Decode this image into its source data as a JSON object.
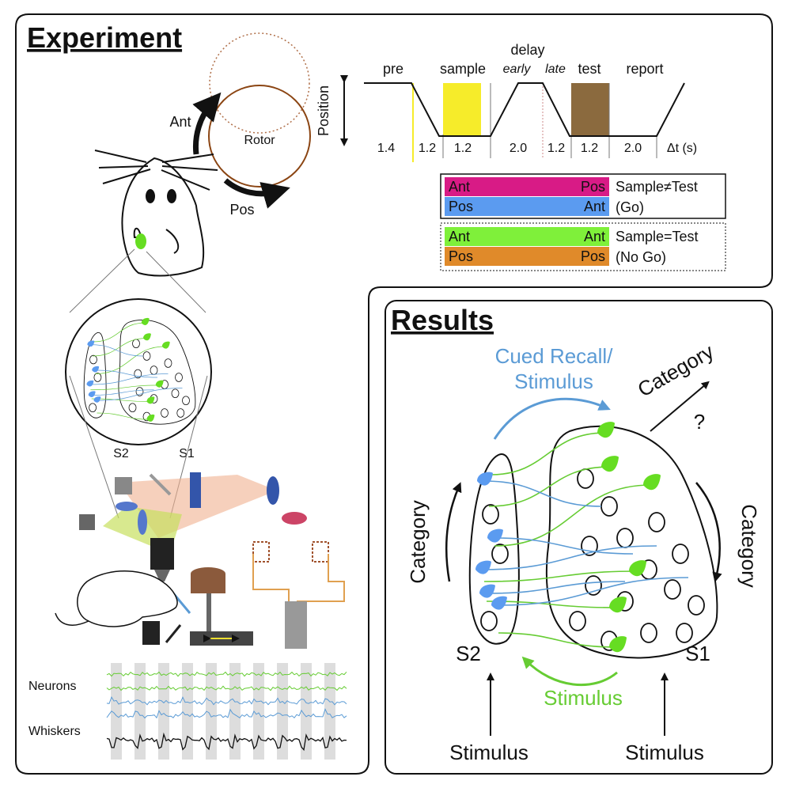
{
  "experiment": {
    "title": "Experiment",
    "rotor": {
      "ant": "Ant",
      "label": "Rotor",
      "pos": "Pos"
    },
    "timeline": {
      "axis_label": "Position",
      "phases": [
        "pre",
        "sample",
        "test",
        "report"
      ],
      "delay": {
        "label": "delay",
        "early": "early",
        "late": "late"
      },
      "durations": [
        "1.4",
        "1.2",
        "1.2",
        "2.0",
        "1.2",
        "1.2",
        "2.0"
      ],
      "unit": "Δt (s)"
    },
    "legend": {
      "rows": [
        {
          "left": "Ant",
          "right": "Pos"
        },
        {
          "left": "Pos",
          "right": "Ant"
        },
        {
          "left": "Ant",
          "right": "Ant"
        },
        {
          "left": "Pos",
          "right": "Pos"
        }
      ],
      "groups": [
        {
          "label": "Sample≠Test",
          "note": "(Go)"
        },
        {
          "label": "Sample=Test",
          "note": "(No Go)"
        }
      ]
    },
    "brain": {
      "s2": "S2",
      "s1": "S1"
    },
    "traces": {
      "neurons": "Neurons",
      "whiskers": "Whiskers"
    }
  },
  "results": {
    "title": "Results",
    "cued": {
      "line1": "Cued Recall/",
      "line2": "Stimulus"
    },
    "category_top": "Category",
    "question": "?",
    "category_left": "Category",
    "category_right": "Category",
    "s2": "S2",
    "s1": "S1",
    "recurrent": "Stimulus",
    "stimulus_left": "Stimulus",
    "stimulus_right": "Stimulus"
  }
}
